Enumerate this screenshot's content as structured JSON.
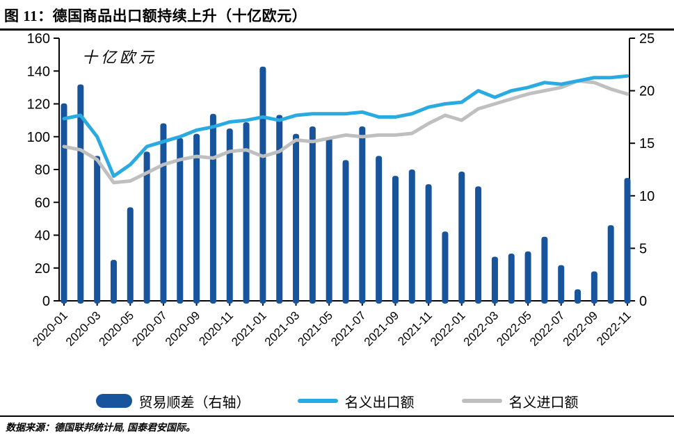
{
  "header": {
    "title": "图 11：德国商品出口额持续上升（十亿欧元）"
  },
  "footer": {
    "source": "数据来源：德国联邦统计局, 国泰君安国际。"
  },
  "colors": {
    "bar": "#17549B",
    "export_line": "#29ABE2",
    "import_line": "#BFBFBF",
    "axis": "#000000"
  },
  "chart_data": {
    "type": "bar+line combo",
    "title": "图 11：德国商品出口额持续上升（十亿欧元）",
    "unit_label": "十亿欧元",
    "x": [
      "2020-01",
      "2020-02",
      "2020-03",
      "2020-04",
      "2020-05",
      "2020-06",
      "2020-07",
      "2020-08",
      "2020-09",
      "2020-10",
      "2020-11",
      "2020-12",
      "2021-01",
      "2021-02",
      "2021-03",
      "2021-04",
      "2021-05",
      "2021-06",
      "2021-07",
      "2021-08",
      "2021-09",
      "2021-10",
      "2021-11",
      "2021-12",
      "2022-01",
      "2022-02",
      "2022-03",
      "2022-04",
      "2022-05",
      "2022-06",
      "2022-07",
      "2022-08",
      "2022-09",
      "2022-10",
      "2022-11"
    ],
    "x_tick_step": 2,
    "left_axis": {
      "min": 0,
      "max": 160,
      "step": 20
    },
    "right_axis": {
      "min": 0,
      "max": 25,
      "step": 5
    },
    "legend_position": "bottom",
    "grid": false,
    "series": [
      {
        "name": "贸易顺差（右轴）",
        "type": "bar",
        "axis": "right",
        "color": "#17549B",
        "values": [
          18.8,
          20.6,
          13.8,
          3.9,
          8.9,
          14.2,
          16.9,
          15.5,
          15.9,
          17.8,
          16.4,
          17.0,
          22.3,
          17.7,
          15.9,
          16.6,
          15.6,
          13.4,
          16.6,
          13.8,
          11.9,
          12.5,
          11.1,
          6.6,
          12.3,
          10.9,
          4.2,
          4.5,
          4.7,
          6.1,
          3.4,
          1.1,
          2.8,
          7.2,
          11.7
        ]
      },
      {
        "name": "名义出口额",
        "type": "line",
        "axis": "left",
        "color": "#29ABE2",
        "values": [
          111,
          113,
          100,
          76,
          83,
          94,
          97,
          100,
          104,
          106,
          109,
          110,
          112,
          110,
          113,
          114,
          114,
          114,
          115,
          112,
          112,
          114,
          118,
          120,
          121,
          128,
          124,
          128,
          130,
          133,
          132,
          134,
          136,
          136,
          137
        ]
      },
      {
        "name": "名义进口额",
        "type": "line",
        "axis": "left",
        "color": "#BFBFBF",
        "values": [
          94,
          92,
          86,
          72,
          73,
          78,
          83,
          86,
          88,
          87,
          91,
          92,
          88,
          91,
          98,
          97,
          99,
          101,
          100,
          101,
          101,
          102,
          108,
          113,
          110,
          117,
          120,
          123,
          126,
          128,
          130,
          134,
          133,
          129,
          126
        ]
      }
    ]
  }
}
